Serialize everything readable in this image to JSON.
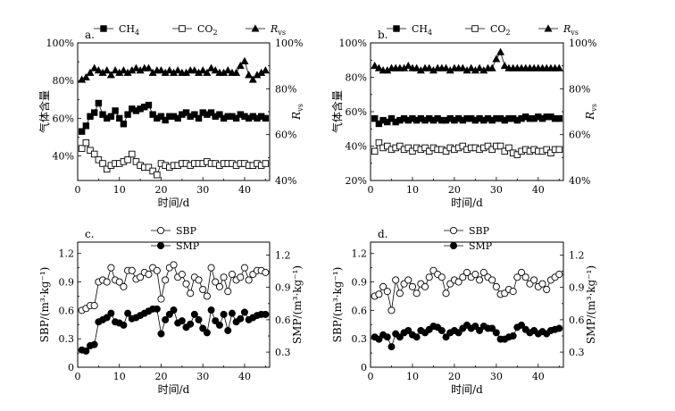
{
  "chart_data": [
    {
      "id": "a",
      "type": "line",
      "panel_label": "a.",
      "xlabel": "时间/d",
      "ylabel": "气体含量",
      "y2label_main": "R",
      "y2label_sub": "vs",
      "xlim": [
        0,
        46
      ],
      "xticks": [
        0,
        10,
        20,
        30,
        40
      ],
      "ylim": [
        0.27,
        1.0
      ],
      "yticks": [
        0.4,
        0.6,
        0.8,
        1.0
      ],
      "ytick_labels": [
        "40%",
        "60%",
        "80%",
        "100%"
      ],
      "y2lim": [
        0.4,
        1.0
      ],
      "y2ticks": [
        0.4,
        0.6,
        0.8,
        1.0
      ],
      "y2tick_labels": [
        "40%",
        "60%",
        "80%",
        "100%"
      ],
      "legend": [
        {
          "main": "CH",
          "sub": "4",
          "marker": "square-filled"
        },
        {
          "main": "CO",
          "sub": "2",
          "marker": "square-open"
        },
        {
          "main": "R",
          "sub": "vs",
          "marker": "triangle-filled",
          "italic": true
        }
      ],
      "x": [
        1,
        2,
        3,
        4,
        5,
        6,
        7,
        8,
        9,
        10,
        11,
        12,
        13,
        14,
        15,
        16,
        17,
        18,
        19,
        20,
        21,
        22,
        23,
        24,
        25,
        26,
        27,
        28,
        29,
        30,
        31,
        32,
        33,
        34,
        35,
        36,
        37,
        38,
        39,
        40,
        41,
        42,
        43,
        44,
        45
      ],
      "series": [
        {
          "name": "CH4",
          "marker": "square-filled",
          "axis": "left",
          "values": [
            0.53,
            0.56,
            0.61,
            0.63,
            0.68,
            0.62,
            0.6,
            0.61,
            0.64,
            0.6,
            0.57,
            0.62,
            0.65,
            0.64,
            0.65,
            0.66,
            0.67,
            0.62,
            0.6,
            0.61,
            0.59,
            0.61,
            0.61,
            0.6,
            0.62,
            0.63,
            0.61,
            0.62,
            0.6,
            0.63,
            0.62,
            0.63,
            0.61,
            0.62,
            0.6,
            0.61,
            0.61,
            0.6,
            0.62,
            0.61,
            0.6,
            0.61,
            0.6,
            0.61,
            0.6
          ]
        },
        {
          "name": "CO2",
          "marker": "square-open",
          "axis": "left",
          "values": [
            0.44,
            0.47,
            0.43,
            0.41,
            0.38,
            0.36,
            0.33,
            0.35,
            0.36,
            0.36,
            0.37,
            0.38,
            0.41,
            0.37,
            0.35,
            0.34,
            0.34,
            0.32,
            0.3,
            0.36,
            0.35,
            0.34,
            0.35,
            0.35,
            0.36,
            0.36,
            0.35,
            0.36,
            0.36,
            0.36,
            0.37,
            0.36,
            0.36,
            0.35,
            0.36,
            0.36,
            0.36,
            0.35,
            0.36,
            0.36,
            0.35,
            0.35,
            0.36,
            0.35,
            0.36
          ]
        },
        {
          "name": "Rvs",
          "marker": "triangle-filled",
          "axis": "right",
          "values": [
            0.84,
            0.85,
            0.87,
            0.89,
            0.88,
            0.87,
            0.88,
            0.86,
            0.88,
            0.87,
            0.88,
            0.87,
            0.88,
            0.89,
            0.88,
            0.89,
            0.89,
            0.87,
            0.88,
            0.88,
            0.87,
            0.88,
            0.87,
            0.88,
            0.87,
            0.87,
            0.88,
            0.88,
            0.87,
            0.88,
            0.87,
            0.89,
            0.88,
            0.87,
            0.87,
            0.88,
            0.87,
            0.87,
            0.9,
            0.92,
            0.86,
            0.84,
            0.86,
            0.87,
            0.88
          ]
        }
      ]
    },
    {
      "id": "b",
      "type": "line",
      "panel_label": "b.",
      "xlabel": "时间/d",
      "ylabel": "气体含量",
      "y2label_main": "R",
      "y2label_sub": "vs",
      "xlim": [
        0,
        46
      ],
      "xticks": [
        0,
        10,
        20,
        30,
        40
      ],
      "ylim": [
        0.2,
        1.0
      ],
      "yticks": [
        0.2,
        0.4,
        0.6,
        0.8,
        1.0
      ],
      "ytick_labels": [
        "20%",
        "40%",
        "60%",
        "80%",
        "100%"
      ],
      "y2lim": [
        0.4,
        1.0
      ],
      "y2ticks": [
        0.4,
        0.6,
        0.8,
        1.0
      ],
      "y2tick_labels": [
        "40%",
        "60%",
        "80%",
        "100%"
      ],
      "legend": [
        {
          "main": "CH",
          "sub": "4",
          "marker": "square-filled"
        },
        {
          "main": "CO",
          "sub": "2",
          "marker": "square-open"
        },
        {
          "main": "R",
          "sub": "vs",
          "marker": "triangle-filled",
          "italic": true
        }
      ],
      "x": [
        1,
        2,
        3,
        4,
        5,
        6,
        7,
        8,
        9,
        10,
        11,
        12,
        13,
        14,
        15,
        16,
        17,
        18,
        19,
        20,
        21,
        22,
        23,
        24,
        25,
        26,
        27,
        28,
        29,
        30,
        31,
        32,
        33,
        34,
        35,
        36,
        37,
        38,
        39,
        40,
        41,
        42,
        43,
        44,
        45
      ],
      "series": [
        {
          "name": "CH4",
          "marker": "square-filled",
          "axis": "left",
          "values": [
            0.56,
            0.53,
            0.55,
            0.54,
            0.56,
            0.54,
            0.55,
            0.56,
            0.55,
            0.56,
            0.55,
            0.56,
            0.55,
            0.56,
            0.55,
            0.56,
            0.55,
            0.55,
            0.56,
            0.55,
            0.56,
            0.55,
            0.56,
            0.56,
            0.55,
            0.56,
            0.55,
            0.56,
            0.55,
            0.56,
            0.56,
            0.55,
            0.56,
            0.56,
            0.55,
            0.56,
            0.57,
            0.56,
            0.56,
            0.57,
            0.56,
            0.57,
            0.57,
            0.56,
            0.56
          ]
        },
        {
          "name": "CO2",
          "marker": "square-open",
          "axis": "left",
          "values": [
            0.37,
            0.42,
            0.39,
            0.4,
            0.38,
            0.39,
            0.4,
            0.38,
            0.39,
            0.37,
            0.39,
            0.38,
            0.39,
            0.37,
            0.39,
            0.38,
            0.38,
            0.37,
            0.39,
            0.38,
            0.39,
            0.4,
            0.38,
            0.39,
            0.39,
            0.38,
            0.39,
            0.4,
            0.38,
            0.4,
            0.4,
            0.37,
            0.39,
            0.36,
            0.35,
            0.37,
            0.38,
            0.37,
            0.38,
            0.37,
            0.37,
            0.38,
            0.36,
            0.38,
            0.38
          ]
        },
        {
          "name": "Rvs",
          "marker": "triangle-filled",
          "axis": "right",
          "values": [
            0.9,
            0.89,
            0.88,
            0.88,
            0.89,
            0.89,
            0.89,
            0.89,
            0.9,
            0.89,
            0.89,
            0.88,
            0.89,
            0.89,
            0.88,
            0.89,
            0.89,
            0.89,
            0.88,
            0.89,
            0.89,
            0.89,
            0.88,
            0.89,
            0.88,
            0.89,
            0.88,
            0.89,
            0.89,
            0.93,
            0.96,
            0.9,
            0.89,
            0.89,
            0.89,
            0.89,
            0.89,
            0.89,
            0.89,
            0.89,
            0.89,
            0.89,
            0.89,
            0.89,
            0.89
          ]
        }
      ]
    },
    {
      "id": "c",
      "type": "line",
      "panel_label": "c.",
      "xlabel": "时间/d",
      "ylabel": "SBP/(m³·kg⁻¹)",
      "y2label": "SMP/(m³·kg⁻¹)",
      "xlim": [
        0,
        46
      ],
      "xticks": [
        0,
        10,
        20,
        30,
        40
      ],
      "ylim": [
        0,
        1.32
      ],
      "yticks": [
        0,
        0.3,
        0.6,
        0.9,
        1.2
      ],
      "ytick_labels": [
        "0",
        "0.3",
        "0.6",
        "0.9",
        "1.2"
      ],
      "y2lim": [
        0.16,
        1.32
      ],
      "y2ticks": [
        0.3,
        0.6,
        0.9,
        1.2
      ],
      "y2tick_labels": [
        "0.3",
        "0.6",
        "0.9",
        "1.2"
      ],
      "legend": [
        {
          "main": "SBP",
          "marker": "circle-open"
        },
        {
          "main": "SMP",
          "marker": "circle-filled"
        }
      ],
      "x": [
        1,
        2,
        3,
        4,
        5,
        6,
        7,
        8,
        9,
        10,
        11,
        12,
        13,
        14,
        15,
        16,
        17,
        18,
        19,
        20,
        21,
        22,
        23,
        24,
        25,
        26,
        27,
        28,
        29,
        30,
        31,
        32,
        33,
        34,
        35,
        36,
        37,
        38,
        39,
        40,
        41,
        42,
        43,
        44,
        45
      ],
      "series": [
        {
          "name": "SBP",
          "marker": "circle-open",
          "axis": "left",
          "values": [
            0.6,
            0.62,
            0.65,
            0.65,
            0.9,
            0.92,
            0.9,
            1.05,
            0.92,
            0.9,
            0.85,
            1.02,
            1.02,
            0.93,
            0.95,
            1.0,
            0.98,
            1.05,
            1.02,
            0.72,
            0.92,
            1.05,
            1.08,
            0.95,
            0.98,
            0.88,
            0.78,
            0.95,
            0.92,
            0.82,
            0.75,
            1.05,
            0.9,
            0.85,
            0.95,
            0.8,
            0.98,
            0.92,
            0.95,
            1.05,
            0.92,
            0.98,
            1.02,
            1.02,
            1.0
          ]
        },
        {
          "name": "SMP",
          "marker": "circle-filled",
          "axis": "right",
          "values": [
            0.32,
            0.31,
            0.36,
            0.37,
            0.58,
            0.6,
            0.62,
            0.66,
            0.58,
            0.57,
            0.55,
            0.66,
            0.61,
            0.62,
            0.64,
            0.66,
            0.68,
            0.7,
            0.7,
            0.47,
            0.6,
            0.65,
            0.69,
            0.57,
            0.59,
            0.53,
            0.56,
            0.65,
            0.6,
            0.52,
            0.48,
            0.69,
            0.59,
            0.55,
            0.65,
            0.5,
            0.66,
            0.58,
            0.61,
            0.67,
            0.6,
            0.62,
            0.64,
            0.65,
            0.65
          ]
        }
      ]
    },
    {
      "id": "d",
      "type": "line",
      "panel_label": "d.",
      "xlabel": "时间/d",
      "ylabel": "SBP/(m³·kg⁻¹)",
      "y2label": "SMP/(m³·kg⁻¹)",
      "xlim": [
        0,
        46
      ],
      "xticks": [
        0,
        10,
        20,
        30,
        40
      ],
      "ylim": [
        0,
        1.32
      ],
      "yticks": [
        0,
        0.3,
        0.6,
        0.9,
        1.2
      ],
      "ytick_labels": [
        "0",
        "0.3",
        "0.6",
        "0.9",
        "1.2"
      ],
      "y2lim": [
        0.16,
        1.32
      ],
      "y2ticks": [
        0.3,
        0.6,
        0.9,
        1.2
      ],
      "y2tick_labels": [
        "0.3",
        "0.6",
        "0.9",
        "1.2"
      ],
      "legend": [
        {
          "main": "SBP",
          "marker": "circle-open"
        },
        {
          "main": "SMP",
          "marker": "circle-filled"
        }
      ],
      "x": [
        1,
        2,
        3,
        4,
        5,
        6,
        7,
        8,
        9,
        10,
        11,
        12,
        13,
        14,
        15,
        16,
        17,
        18,
        19,
        20,
        21,
        22,
        23,
        24,
        25,
        26,
        27,
        28,
        29,
        30,
        31,
        32,
        33,
        34,
        35,
        36,
        37,
        38,
        39,
        40,
        41,
        42,
        43,
        44,
        45
      ],
      "series": [
        {
          "name": "SBP",
          "marker": "circle-open",
          "axis": "left",
          "values": [
            0.75,
            0.77,
            0.85,
            0.8,
            0.6,
            0.92,
            0.78,
            0.88,
            0.92,
            0.85,
            0.78,
            0.88,
            0.85,
            0.95,
            1.02,
            0.98,
            0.95,
            0.78,
            0.88,
            0.92,
            0.9,
            0.95,
            1.0,
            0.95,
            0.98,
            0.92,
            1.0,
            0.95,
            0.92,
            0.85,
            0.77,
            0.78,
            0.82,
            0.8,
            0.95,
            1.0,
            0.95,
            0.88,
            0.92,
            0.85,
            0.88,
            0.82,
            0.92,
            0.95,
            0.98
          ]
        },
        {
          "name": "SMP",
          "marker": "circle-filled",
          "axis": "right",
          "values": [
            0.44,
            0.42,
            0.46,
            0.44,
            0.35,
            0.47,
            0.44,
            0.48,
            0.5,
            0.46,
            0.44,
            0.5,
            0.48,
            0.51,
            0.54,
            0.53,
            0.5,
            0.44,
            0.48,
            0.5,
            0.48,
            0.52,
            0.55,
            0.52,
            0.54,
            0.5,
            0.54,
            0.52,
            0.52,
            0.48,
            0.42,
            0.42,
            0.44,
            0.45,
            0.53,
            0.55,
            0.51,
            0.48,
            0.5,
            0.47,
            0.49,
            0.47,
            0.5,
            0.51,
            0.52
          ]
        }
      ]
    }
  ]
}
